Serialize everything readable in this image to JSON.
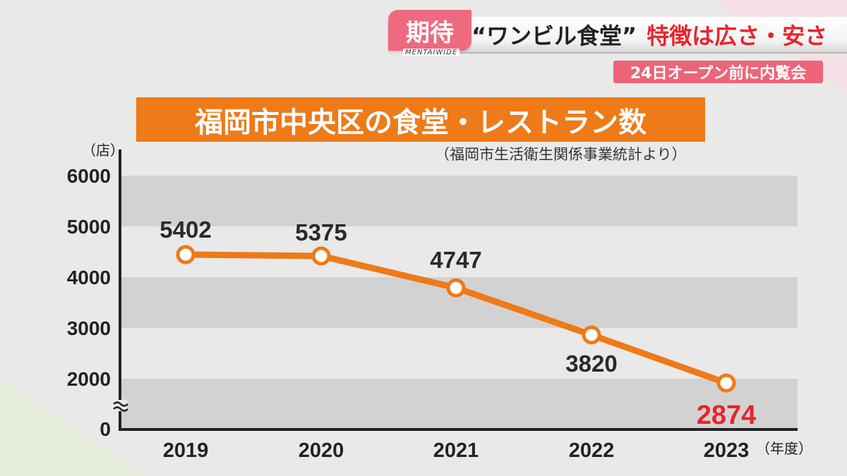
{
  "caption": {
    "tag": "期待",
    "quote": "“ワンビル食堂”",
    "red_text": "特徴は広さ・安さ",
    "logo": "MENTAIWIDE",
    "sub": "24日オープン前に内覧会"
  },
  "colors": {
    "accent": "#ee7a18",
    "highlight": "#e8242b",
    "caption_pink": "#ee6a7e"
  },
  "chart_data": {
    "type": "line",
    "title": "福岡市中央区の食堂・レストラン数",
    "source": "（福岡市生活衛生関係事業統計より）",
    "ylabel": "（店）",
    "xlabel": "（年度）",
    "categories": [
      "2019",
      "2020",
      "2021",
      "2022",
      "2023"
    ],
    "values": [
      5402,
      5375,
      4747,
      3820,
      2874
    ],
    "data_labels": [
      "5402",
      "5375",
      "4747",
      "3820",
      "2874"
    ],
    "yticks": [
      "0",
      "2000",
      "3000",
      "4000",
      "5000",
      "6000"
    ],
    "ylim": [
      0,
      6000
    ],
    "axis_break": true,
    "grid": "alternating bands",
    "highlight_last": true
  }
}
